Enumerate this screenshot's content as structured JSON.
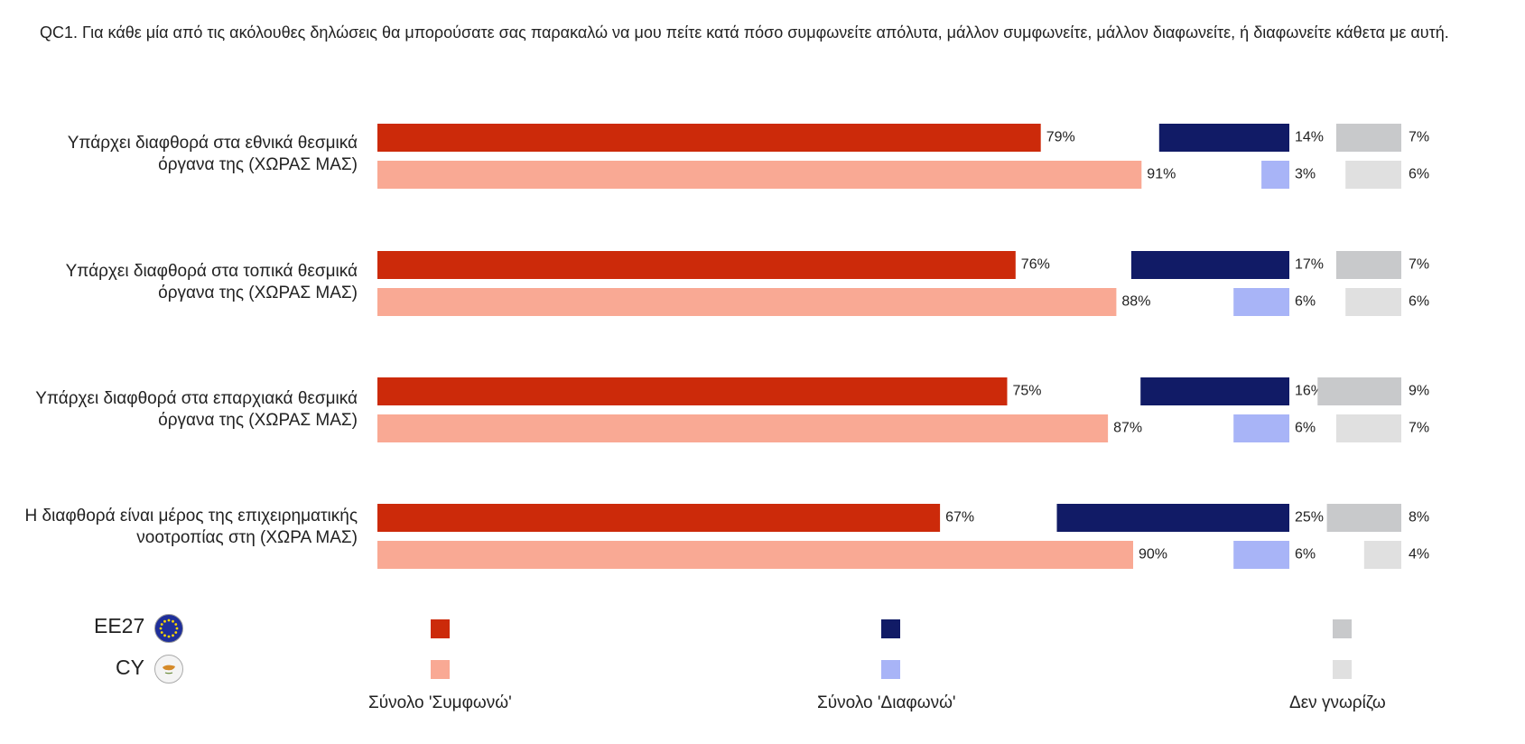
{
  "question": "QC1. Για κάθε μία από τις ακόλουθες δηλώσεις θα μπορούσατε σας παρακαλώ να μου πείτε κατά πόσο συμφωνείτε απόλυτα, μάλλον συμφωνείτε, μάλλον διαφωνείτε, ή διαφωνείτε κάθετα με αυτή.",
  "legend": {
    "rows": [
      {
        "label": "ΕΕ27",
        "flag_icon": "eu-flag-icon"
      },
      {
        "label": "CY",
        "flag_icon": "cyprus-flag-icon"
      }
    ],
    "series": [
      "Σύνολο 'Συμφωνώ'",
      "Σύνολο 'Διαφωνώ'",
      "Δεν γνωρίζω"
    ]
  },
  "colors": {
    "agree_eu": "#cc2a0a",
    "agree_cy": "#f9a994",
    "disagree_eu": "#111b66",
    "disagree_cy": "#a8b4f7",
    "dk_eu": "#c8c9cb",
    "dk_cy": "#e0e0e0"
  },
  "chart_data": {
    "type": "bar",
    "orientation": "horizontal",
    "categories": [
      "Υπάρχει διαφθορά στα εθνικά θεσμικά όργανα της (ΧΩΡΑΣ ΜΑΣ)",
      "Υπάρχει διαφθορά στα τοπικά θεσμικά όργανα της (ΧΩΡΑΣ ΜΑΣ)",
      "Υπάρχει διαφθορά στα επαρχιακά θεσμικά όργανα της (ΧΩΡΑΣ ΜΑΣ)",
      "Η διαφθορά είναι μέρος της επιχειρηματικής νοοτροπίας στη (ΧΩΡΑ ΜΑΣ)"
    ],
    "groups": [
      "ΕΕ27",
      "CY"
    ],
    "series": [
      {
        "name": "Σύνολο 'Συμφωνώ'",
        "values": {
          "ΕΕ27": [
            79,
            76,
            75,
            67
          ],
          "CY": [
            91,
            88,
            87,
            90
          ]
        }
      },
      {
        "name": "Σύνολο 'Διαφωνώ'",
        "values": {
          "ΕΕ27": [
            14,
            17,
            16,
            25
          ],
          "CY": [
            3,
            6,
            6,
            6
          ]
        }
      },
      {
        "name": "Δεν γνωρίζω",
        "values": {
          "ΕΕ27": [
            7,
            7,
            9,
            8
          ],
          "CY": [
            6,
            6,
            7,
            4
          ]
        }
      }
    ],
    "unit": "%"
  }
}
